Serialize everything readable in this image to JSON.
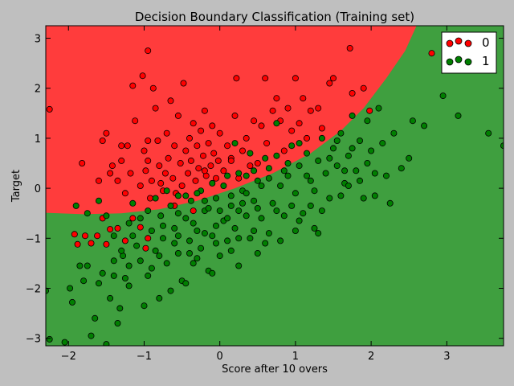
{
  "chart_data": {
    "type": "scatter",
    "title": "Decision Boundary Classification (Training set)",
    "xlabel": "Score after 10 overs",
    "ylabel": "Target",
    "xlim": [
      -2.3,
      3.75
    ],
    "ylim": [
      -3.15,
      3.25
    ],
    "xticks": [
      -2,
      -1,
      0,
      1,
      2,
      3
    ],
    "yticks": [
      -3,
      -2,
      -1,
      0,
      1,
      2,
      3
    ],
    "grid": false,
    "legend_position": "top-right",
    "colors": {
      "class_0_region": "#ff3c3c",
      "class_1_region": "#3f9f3f",
      "class_0_point": "#ff0000",
      "class_1_point": "#007f00",
      "background": "#bfbfbf"
    },
    "decision_boundary": [
      [
        -2.3,
        -0.49
      ],
      [
        -1.8,
        -0.52
      ],
      [
        -1.3,
        -0.5
      ],
      [
        -0.8,
        -0.42
      ],
      [
        -0.3,
        -0.25
      ],
      [
        0.2,
        0.0
      ],
      [
        0.7,
        0.3
      ],
      [
        1.2,
        0.7
      ],
      [
        1.6,
        1.15
      ],
      [
        1.9,
        1.6
      ],
      [
        2.2,
        2.2
      ],
      [
        2.45,
        2.75
      ],
      [
        2.6,
        3.25
      ]
    ],
    "series": [
      {
        "name": "0",
        "points": [
          [
            -2.25,
            1.58
          ],
          [
            -1.82,
            0.5
          ],
          [
            -1.55,
            0.95
          ],
          [
            -1.5,
            1.1
          ],
          [
            -1.42,
            0.45
          ],
          [
            -1.35,
            0.15
          ],
          [
            -1.3,
            0.55
          ],
          [
            -1.25,
            -0.1
          ],
          [
            -1.22,
            0.85
          ],
          [
            -1.18,
            0.3
          ],
          [
            -1.15,
            2.05
          ],
          [
            -1.12,
            1.35
          ],
          [
            -1.05,
            0.05
          ],
          [
            -1.02,
            2.25
          ],
          [
            -1.0,
            0.75
          ],
          [
            -0.98,
            0.35
          ],
          [
            -0.95,
            0.55
          ],
          [
            -0.92,
            -0.2
          ],
          [
            -0.9,
            0.15
          ],
          [
            -0.95,
            2.75
          ],
          [
            -0.88,
            2.0
          ],
          [
            -0.85,
            1.6
          ],
          [
            -0.82,
            0.95
          ],
          [
            -0.8,
            0.45
          ],
          [
            -0.78,
            0.1
          ],
          [
            -0.75,
            -0.05
          ],
          [
            -0.72,
            0.3
          ],
          [
            -0.7,
            1.1
          ],
          [
            -0.68,
            0.6
          ],
          [
            -0.65,
            1.75
          ],
          [
            -0.62,
            0.2
          ],
          [
            -0.6,
            0.85
          ],
          [
            -0.58,
            -0.1
          ],
          [
            -0.55,
            1.45
          ],
          [
            -0.52,
            0.5
          ],
          [
            -0.5,
            0.05
          ],
          [
            -0.48,
            2.1
          ],
          [
            -0.45,
            0.75
          ],
          [
            -0.42,
            0.3
          ],
          [
            -0.4,
            1.0
          ],
          [
            -0.38,
            0.55
          ],
          [
            -0.35,
            1.3
          ],
          [
            -0.32,
            0.15
          ],
          [
            -0.3,
            0.85
          ],
          [
            -0.28,
            0.4
          ],
          [
            -0.25,
            1.15
          ],
          [
            -0.22,
            0.65
          ],
          [
            -0.2,
            1.55
          ],
          [
            -0.18,
            0.25
          ],
          [
            -0.15,
            0.9
          ],
          [
            -0.12,
            0.45
          ],
          [
            -0.1,
            1.25
          ],
          [
            -0.08,
            0.7
          ],
          [
            -0.05,
            0.2
          ],
          [
            -0.02,
            0.55
          ],
          [
            0.0,
            1.1
          ],
          [
            0.05,
            0.35
          ],
          [
            0.1,
            0.85
          ],
          [
            0.15,
            0.6
          ],
          [
            0.2,
            1.45
          ],
          [
            0.22,
            2.2
          ],
          [
            0.25,
            0.2
          ],
          [
            0.3,
            0.75
          ],
          [
            0.35,
            1.0
          ],
          [
            0.4,
            0.45
          ],
          [
            0.45,
            1.35
          ],
          [
            0.5,
            0.5
          ],
          [
            0.55,
            1.25
          ],
          [
            0.6,
            2.2
          ],
          [
            0.62,
            0.9
          ],
          [
            0.7,
            1.55
          ],
          [
            0.75,
            1.8
          ],
          [
            0.8,
            1.35
          ],
          [
            0.85,
            0.75
          ],
          [
            0.9,
            1.6
          ],
          [
            0.95,
            1.15
          ],
          [
            1.0,
            2.2
          ],
          [
            1.05,
            1.3
          ],
          [
            1.1,
            1.8
          ],
          [
            1.15,
            1.0
          ],
          [
            1.2,
            1.55
          ],
          [
            1.3,
            1.6
          ],
          [
            1.35,
            1.2
          ],
          [
            1.45,
            2.1
          ],
          [
            1.5,
            2.2
          ],
          [
            1.75,
            1.9
          ],
          [
            1.9,
            2.0
          ],
          [
            1.98,
            1.55
          ],
          [
            1.72,
            2.8
          ],
          [
            2.8,
            2.7
          ],
          [
            -1.92,
            -0.92
          ],
          [
            -1.88,
            -1.12
          ],
          [
            -1.78,
            -0.95
          ],
          [
            -1.7,
            -1.1
          ],
          [
            -1.62,
            -0.95
          ],
          [
            -1.5,
            -1.12
          ],
          [
            -1.45,
            -0.82
          ],
          [
            -1.35,
            -0.8
          ],
          [
            -1.25,
            -1.05
          ],
          [
            -1.15,
            -0.6
          ],
          [
            -1.05,
            -0.78
          ],
          [
            -0.95,
            -1.0
          ],
          [
            -0.98,
            -1.2
          ],
          [
            -1.55,
            -0.6
          ],
          [
            -1.6,
            0.15
          ],
          [
            -1.45,
            0.3
          ],
          [
            -1.3,
            0.85
          ],
          [
            -0.2,
            0.35
          ],
          [
            0.15,
            0.55
          ],
          [
            -0.6,
            -0.35
          ],
          [
            -0.35,
            -0.45
          ],
          [
            -0.95,
            0.95
          ]
        ]
      },
      {
        "name": "1",
        "points": [
          [
            -2.25,
            -3.02
          ],
          [
            -2.3,
            -2.05
          ],
          [
            -2.05,
            -3.08
          ],
          [
            -1.98,
            -2.0
          ],
          [
            -1.95,
            -2.28
          ],
          [
            -1.85,
            -1.55
          ],
          [
            -1.8,
            -1.85
          ],
          [
            -1.7,
            -2.95
          ],
          [
            -1.65,
            -2.6
          ],
          [
            -1.55,
            -1.7
          ],
          [
            -1.5,
            -3.12
          ],
          [
            -1.45,
            -2.2
          ],
          [
            -1.4,
            -1.75
          ],
          [
            -1.35,
            -2.7
          ],
          [
            -1.32,
            -2.4
          ],
          [
            -1.28,
            -1.35
          ],
          [
            -1.25,
            -1.8
          ],
          [
            -1.2,
            -1.55
          ],
          [
            -1.15,
            -0.95
          ],
          [
            -1.1,
            -1.15
          ],
          [
            -1.05,
            -1.45
          ],
          [
            -1.0,
            -2.35
          ],
          [
            -0.95,
            -1.75
          ],
          [
            -0.9,
            -0.85
          ],
          [
            -0.85,
            -1.25
          ],
          [
            -0.8,
            -2.2
          ],
          [
            -0.78,
            -0.55
          ],
          [
            -0.75,
            -1.0
          ],
          [
            -0.7,
            -1.5
          ],
          [
            -0.65,
            -2.05
          ],
          [
            -0.6,
            -0.8
          ],
          [
            -0.55,
            -1.3
          ],
          [
            -0.5,
            -1.85
          ],
          [
            -0.45,
            -0.6
          ],
          [
            -0.4,
            -1.05
          ],
          [
            -0.38,
            -0.25
          ],
          [
            -0.35,
            -1.5
          ],
          [
            -0.3,
            -0.85
          ],
          [
            -0.25,
            -1.2
          ],
          [
            -0.2,
            -0.45
          ],
          [
            -0.15,
            -1.65
          ],
          [
            -0.1,
            -0.95
          ],
          [
            -0.05,
            -0.2
          ],
          [
            0.0,
            -1.35
          ],
          [
            0.05,
            -0.65
          ],
          [
            0.1,
            -1.05
          ],
          [
            0.15,
            -0.35
          ],
          [
            0.2,
            -0.8
          ],
          [
            0.25,
            -1.55
          ],
          [
            0.3,
            -0.05
          ],
          [
            0.35,
            -0.55
          ],
          [
            0.4,
            -1.0
          ],
          [
            0.45,
            -0.25
          ],
          [
            0.5,
            0.15
          ],
          [
            0.55,
            -0.6
          ],
          [
            0.6,
            -1.1
          ],
          [
            0.65,
            0.4
          ],
          [
            0.7,
            -0.3
          ],
          [
            0.75,
            0.65
          ],
          [
            0.8,
            0.05
          ],
          [
            0.85,
            -0.55
          ],
          [
            0.9,
            0.25
          ],
          [
            0.95,
            0.85
          ],
          [
            1.0,
            -0.1
          ],
          [
            1.05,
            0.45
          ],
          [
            1.1,
            -0.5
          ],
          [
            1.15,
            0.7
          ],
          [
            1.2,
            0.15
          ],
          [
            1.25,
            -0.8
          ],
          [
            1.3,
            0.55
          ],
          [
            1.35,
            1.0
          ],
          [
            1.4,
            0.3
          ],
          [
            1.45,
            -0.2
          ],
          [
            1.5,
            0.8
          ],
          [
            1.55,
            0.45
          ],
          [
            1.6,
            1.1
          ],
          [
            1.65,
            0.1
          ],
          [
            1.7,
            0.65
          ],
          [
            1.75,
            1.45
          ],
          [
            1.8,
            0.35
          ],
          [
            1.85,
            0.95
          ],
          [
            1.9,
            -0.2
          ],
          [
            1.95,
            1.35
          ],
          [
            2.0,
            0.75
          ],
          [
            2.05,
            0.3
          ],
          [
            2.1,
            1.6
          ],
          [
            2.15,
            0.9
          ],
          [
            2.2,
            0.25
          ],
          [
            2.3,
            1.1
          ],
          [
            2.4,
            0.4
          ],
          [
            2.5,
            0.6
          ],
          [
            2.55,
            1.35
          ],
          [
            2.7,
            1.25
          ],
          [
            2.95,
            1.85
          ],
          [
            3.15,
            1.45
          ],
          [
            3.55,
            1.1
          ],
          [
            3.75,
            0.85
          ],
          [
            -1.9,
            -0.35
          ],
          [
            -1.75,
            -0.5
          ],
          [
            -1.6,
            -0.25
          ],
          [
            -1.5,
            -0.55
          ],
          [
            -1.4,
            -0.95
          ],
          [
            -1.3,
            -1.25
          ],
          [
            -1.2,
            -0.7
          ],
          [
            -1.15,
            -0.3
          ],
          [
            -1.05,
            -0.6
          ],
          [
            -0.95,
            -0.45
          ],
          [
            -0.85,
            -0.2
          ],
          [
            -0.75,
            -0.75
          ],
          [
            -0.65,
            -0.35
          ],
          [
            -0.55,
            -0.95
          ],
          [
            -0.45,
            -0.15
          ],
          [
            -0.35,
            -0.7
          ],
          [
            -0.25,
            -0.05
          ],
          [
            -0.15,
            -0.4
          ],
          [
            -0.05,
            -0.75
          ],
          [
            0.05,
            0.05
          ],
          [
            0.15,
            -0.15
          ],
          [
            0.25,
            -0.45
          ],
          [
            0.35,
            0.25
          ],
          [
            0.45,
            -0.85
          ],
          [
            0.55,
            0.05
          ],
          [
            0.65,
            -0.9
          ],
          [
            0.75,
            -0.45
          ],
          [
            0.85,
            0.35
          ],
          [
            0.95,
            -0.35
          ],
          [
            1.05,
            -0.65
          ],
          [
            1.15,
            0.25
          ],
          [
            1.25,
            -0.05
          ],
          [
            1.35,
            -0.45
          ],
          [
            1.45,
            0.6
          ],
          [
            1.55,
            0.95
          ],
          [
            1.65,
            0.35
          ],
          [
            1.75,
            0.8
          ],
          [
            1.85,
            0.15
          ],
          [
            1.95,
            0.5
          ],
          [
            0.2,
            0.9
          ],
          [
            0.4,
            0.7
          ],
          [
            0.6,
            0.6
          ],
          [
            0.75,
            1.3
          ],
          [
            0.9,
            0.5
          ],
          [
            1.05,
            0.9
          ],
          [
            0.25,
            0.3
          ],
          [
            -0.1,
            0.1
          ],
          [
            -0.3,
            -0.1
          ],
          [
            -0.55,
            -0.15
          ],
          [
            0.3,
            -0.3
          ],
          [
            0.5,
            -0.4
          ],
          [
            0.1,
            -0.6
          ],
          [
            -0.2,
            -0.9
          ],
          [
            -0.4,
            -1.3
          ],
          [
            -0.6,
            -1.1
          ],
          [
            -0.9,
            -1.6
          ],
          [
            -1.2,
            -1.95
          ],
          [
            -0.1,
            -1.7
          ],
          [
            0.25,
            -1.0
          ],
          [
            0.5,
            -1.3
          ],
          [
            0.8,
            -1.05
          ],
          [
            1.0,
            -0.85
          ],
          [
            0.0,
            -0.45
          ],
          [
            -0.7,
            -0.05
          ],
          [
            1.3,
            -0.9
          ],
          [
            1.2,
            -0.35
          ],
          [
            1.6,
            -0.15
          ],
          [
            2.25,
            -0.3
          ],
          [
            2.05,
            -0.15
          ],
          [
            1.7,
            0.05
          ],
          [
            0.45,
            0.35
          ],
          [
            0.1,
            0.25
          ],
          [
            -1.6,
            -1.9
          ],
          [
            -1.75,
            -1.55
          ],
          [
            -1.4,
            -1.45
          ],
          [
            -0.55,
            -0.5
          ],
          [
            -0.2,
            -0.25
          ],
          [
            0.35,
            -0.1
          ],
          [
            0.65,
            0.2
          ],
          [
            0.15,
            -1.25
          ],
          [
            -0.05,
            -1.1
          ],
          [
            -0.3,
            -1.4
          ],
          [
            -0.45,
            -1.9
          ],
          [
            -0.8,
            -1.35
          ]
        ]
      }
    ]
  }
}
